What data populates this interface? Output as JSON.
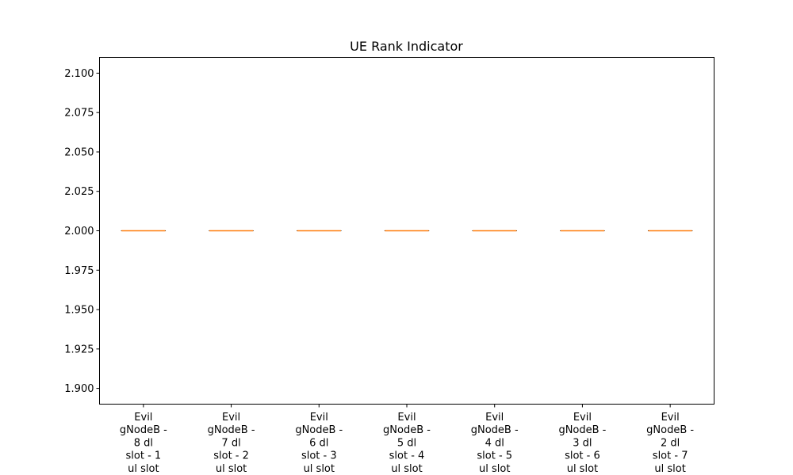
{
  "chart_data": {
    "type": "box",
    "title": "UE Rank Indicator",
    "xlabel": "",
    "ylabel": "",
    "ylim": [
      1.89,
      2.11
    ],
    "yticks": [
      1.9,
      1.925,
      1.95,
      1.975,
      2.0,
      2.025,
      2.05,
      2.075,
      2.1
    ],
    "ytick_labels": [
      "1.900",
      "1.925",
      "1.950",
      "1.975",
      "2.000",
      "2.025",
      "2.050",
      "2.075",
      "2.100"
    ],
    "grid": false,
    "categories": [
      [
        "Evil",
        "gNodeB -",
        "8 dl",
        "slot - 1",
        "ul slot"
      ],
      [
        "Evil",
        "gNodeB -",
        "7 dl",
        "slot - 2",
        "ul slot"
      ],
      [
        "Evil",
        "gNodeB -",
        "6 dl",
        "slot - 3",
        "ul slot"
      ],
      [
        "Evil",
        "gNodeB -",
        "5 dl",
        "slot - 4",
        "ul slot"
      ],
      [
        "Evil",
        "gNodeB -",
        "4 dl",
        "slot - 5",
        "ul slot"
      ],
      [
        "Evil",
        "gNodeB -",
        "3 dl",
        "slot - 6",
        "ul slot"
      ],
      [
        "Evil",
        "gNodeB -",
        "2 dl",
        "slot - 7",
        "ul slot"
      ]
    ],
    "boxes": [
      {
        "min": 2.0,
        "q1": 2.0,
        "median": 2.0,
        "q3": 2.0,
        "max": 2.0
      },
      {
        "min": 2.0,
        "q1": 2.0,
        "median": 2.0,
        "q3": 2.0,
        "max": 2.0
      },
      {
        "min": 2.0,
        "q1": 2.0,
        "median": 2.0,
        "q3": 2.0,
        "max": 2.0
      },
      {
        "min": 2.0,
        "q1": 2.0,
        "median": 2.0,
        "q3": 2.0,
        "max": 2.0
      },
      {
        "min": 2.0,
        "q1": 2.0,
        "median": 2.0,
        "q3": 2.0,
        "max": 2.0
      },
      {
        "min": 2.0,
        "q1": 2.0,
        "median": 2.0,
        "q3": 2.0,
        "max": 2.0
      },
      {
        "min": 2.0,
        "q1": 2.0,
        "median": 2.0,
        "q3": 2.0,
        "max": 2.0
      }
    ],
    "colors": {
      "box": "#000000",
      "median": "#ff7f0e",
      "axis": "#000000"
    }
  }
}
